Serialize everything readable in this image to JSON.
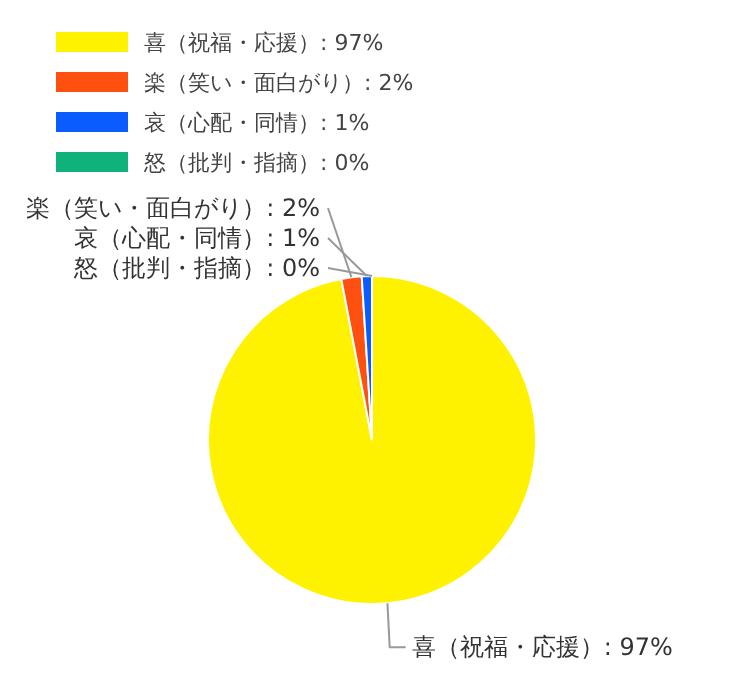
{
  "chart_data": {
    "type": "pie",
    "categories": [
      "喜（祝福・応援）",
      "楽（笑い・面白がり）",
      "哀（心配・同情）",
      "怒（批判・指摘）"
    ],
    "values": [
      97,
      2,
      1,
      0
    ],
    "colors": [
      "#fff200",
      "#ff5010",
      "#0a5cff",
      "#10b27c"
    ],
    "value_labels": [
      ": 97%",
      ": 2%",
      ": 1%",
      ": 0%"
    ],
    "legend": "top left"
  }
}
